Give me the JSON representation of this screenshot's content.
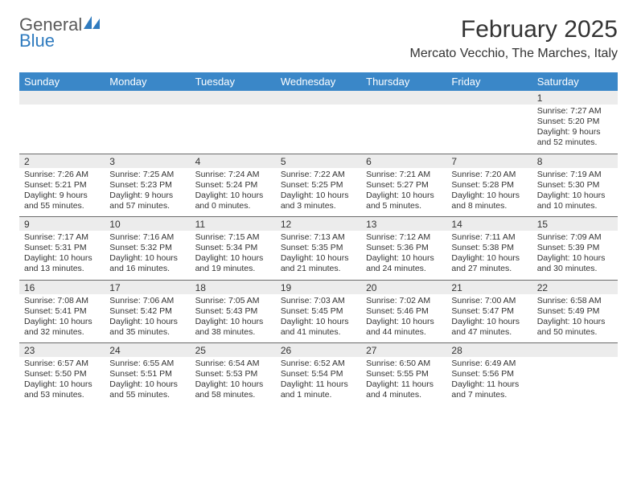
{
  "logo": {
    "word1": "General",
    "word2": "Blue"
  },
  "title": "February 2025",
  "location": "Mercato Vecchio, The Marches, Italy",
  "colors": {
    "header_bg": "#3a87c8",
    "header_text": "#ffffff",
    "daynum_bg": "#ececec",
    "border": "#6b6b6b",
    "logo_gray": "#5a5a5a",
    "logo_blue": "#2f7bbf"
  },
  "days": [
    "Sunday",
    "Monday",
    "Tuesday",
    "Wednesday",
    "Thursday",
    "Friday",
    "Saturday"
  ],
  "weeks": [
    [
      {
        "n": "",
        "lines": []
      },
      {
        "n": "",
        "lines": []
      },
      {
        "n": "",
        "lines": []
      },
      {
        "n": "",
        "lines": []
      },
      {
        "n": "",
        "lines": []
      },
      {
        "n": "",
        "lines": []
      },
      {
        "n": "1",
        "lines": [
          "Sunrise: 7:27 AM",
          "Sunset: 5:20 PM",
          "Daylight: 9 hours and 52 minutes."
        ]
      }
    ],
    [
      {
        "n": "2",
        "lines": [
          "Sunrise: 7:26 AM",
          "Sunset: 5:21 PM",
          "Daylight: 9 hours and 55 minutes."
        ]
      },
      {
        "n": "3",
        "lines": [
          "Sunrise: 7:25 AM",
          "Sunset: 5:23 PM",
          "Daylight: 9 hours and 57 minutes."
        ]
      },
      {
        "n": "4",
        "lines": [
          "Sunrise: 7:24 AM",
          "Sunset: 5:24 PM",
          "Daylight: 10 hours and 0 minutes."
        ]
      },
      {
        "n": "5",
        "lines": [
          "Sunrise: 7:22 AM",
          "Sunset: 5:25 PM",
          "Daylight: 10 hours and 3 minutes."
        ]
      },
      {
        "n": "6",
        "lines": [
          "Sunrise: 7:21 AM",
          "Sunset: 5:27 PM",
          "Daylight: 10 hours and 5 minutes."
        ]
      },
      {
        "n": "7",
        "lines": [
          "Sunrise: 7:20 AM",
          "Sunset: 5:28 PM",
          "Daylight: 10 hours and 8 minutes."
        ]
      },
      {
        "n": "8",
        "lines": [
          "Sunrise: 7:19 AM",
          "Sunset: 5:30 PM",
          "Daylight: 10 hours and 10 minutes."
        ]
      }
    ],
    [
      {
        "n": "9",
        "lines": [
          "Sunrise: 7:17 AM",
          "Sunset: 5:31 PM",
          "Daylight: 10 hours and 13 minutes."
        ]
      },
      {
        "n": "10",
        "lines": [
          "Sunrise: 7:16 AM",
          "Sunset: 5:32 PM",
          "Daylight: 10 hours and 16 minutes."
        ]
      },
      {
        "n": "11",
        "lines": [
          "Sunrise: 7:15 AM",
          "Sunset: 5:34 PM",
          "Daylight: 10 hours and 19 minutes."
        ]
      },
      {
        "n": "12",
        "lines": [
          "Sunrise: 7:13 AM",
          "Sunset: 5:35 PM",
          "Daylight: 10 hours and 21 minutes."
        ]
      },
      {
        "n": "13",
        "lines": [
          "Sunrise: 7:12 AM",
          "Sunset: 5:36 PM",
          "Daylight: 10 hours and 24 minutes."
        ]
      },
      {
        "n": "14",
        "lines": [
          "Sunrise: 7:11 AM",
          "Sunset: 5:38 PM",
          "Daylight: 10 hours and 27 minutes."
        ]
      },
      {
        "n": "15",
        "lines": [
          "Sunrise: 7:09 AM",
          "Sunset: 5:39 PM",
          "Daylight: 10 hours and 30 minutes."
        ]
      }
    ],
    [
      {
        "n": "16",
        "lines": [
          "Sunrise: 7:08 AM",
          "Sunset: 5:41 PM",
          "Daylight: 10 hours and 32 minutes."
        ]
      },
      {
        "n": "17",
        "lines": [
          "Sunrise: 7:06 AM",
          "Sunset: 5:42 PM",
          "Daylight: 10 hours and 35 minutes."
        ]
      },
      {
        "n": "18",
        "lines": [
          "Sunrise: 7:05 AM",
          "Sunset: 5:43 PM",
          "Daylight: 10 hours and 38 minutes."
        ]
      },
      {
        "n": "19",
        "lines": [
          "Sunrise: 7:03 AM",
          "Sunset: 5:45 PM",
          "Daylight: 10 hours and 41 minutes."
        ]
      },
      {
        "n": "20",
        "lines": [
          "Sunrise: 7:02 AM",
          "Sunset: 5:46 PM",
          "Daylight: 10 hours and 44 minutes."
        ]
      },
      {
        "n": "21",
        "lines": [
          "Sunrise: 7:00 AM",
          "Sunset: 5:47 PM",
          "Daylight: 10 hours and 47 minutes."
        ]
      },
      {
        "n": "22",
        "lines": [
          "Sunrise: 6:58 AM",
          "Sunset: 5:49 PM",
          "Daylight: 10 hours and 50 minutes."
        ]
      }
    ],
    [
      {
        "n": "23",
        "lines": [
          "Sunrise: 6:57 AM",
          "Sunset: 5:50 PM",
          "Daylight: 10 hours and 53 minutes."
        ]
      },
      {
        "n": "24",
        "lines": [
          "Sunrise: 6:55 AM",
          "Sunset: 5:51 PM",
          "Daylight: 10 hours and 55 minutes."
        ]
      },
      {
        "n": "25",
        "lines": [
          "Sunrise: 6:54 AM",
          "Sunset: 5:53 PM",
          "Daylight: 10 hours and 58 minutes."
        ]
      },
      {
        "n": "26",
        "lines": [
          "Sunrise: 6:52 AM",
          "Sunset: 5:54 PM",
          "Daylight: 11 hours and 1 minute."
        ]
      },
      {
        "n": "27",
        "lines": [
          "Sunrise: 6:50 AM",
          "Sunset: 5:55 PM",
          "Daylight: 11 hours and 4 minutes."
        ]
      },
      {
        "n": "28",
        "lines": [
          "Sunrise: 6:49 AM",
          "Sunset: 5:56 PM",
          "Daylight: 11 hours and 7 minutes."
        ]
      },
      {
        "n": "",
        "lines": []
      }
    ]
  ]
}
